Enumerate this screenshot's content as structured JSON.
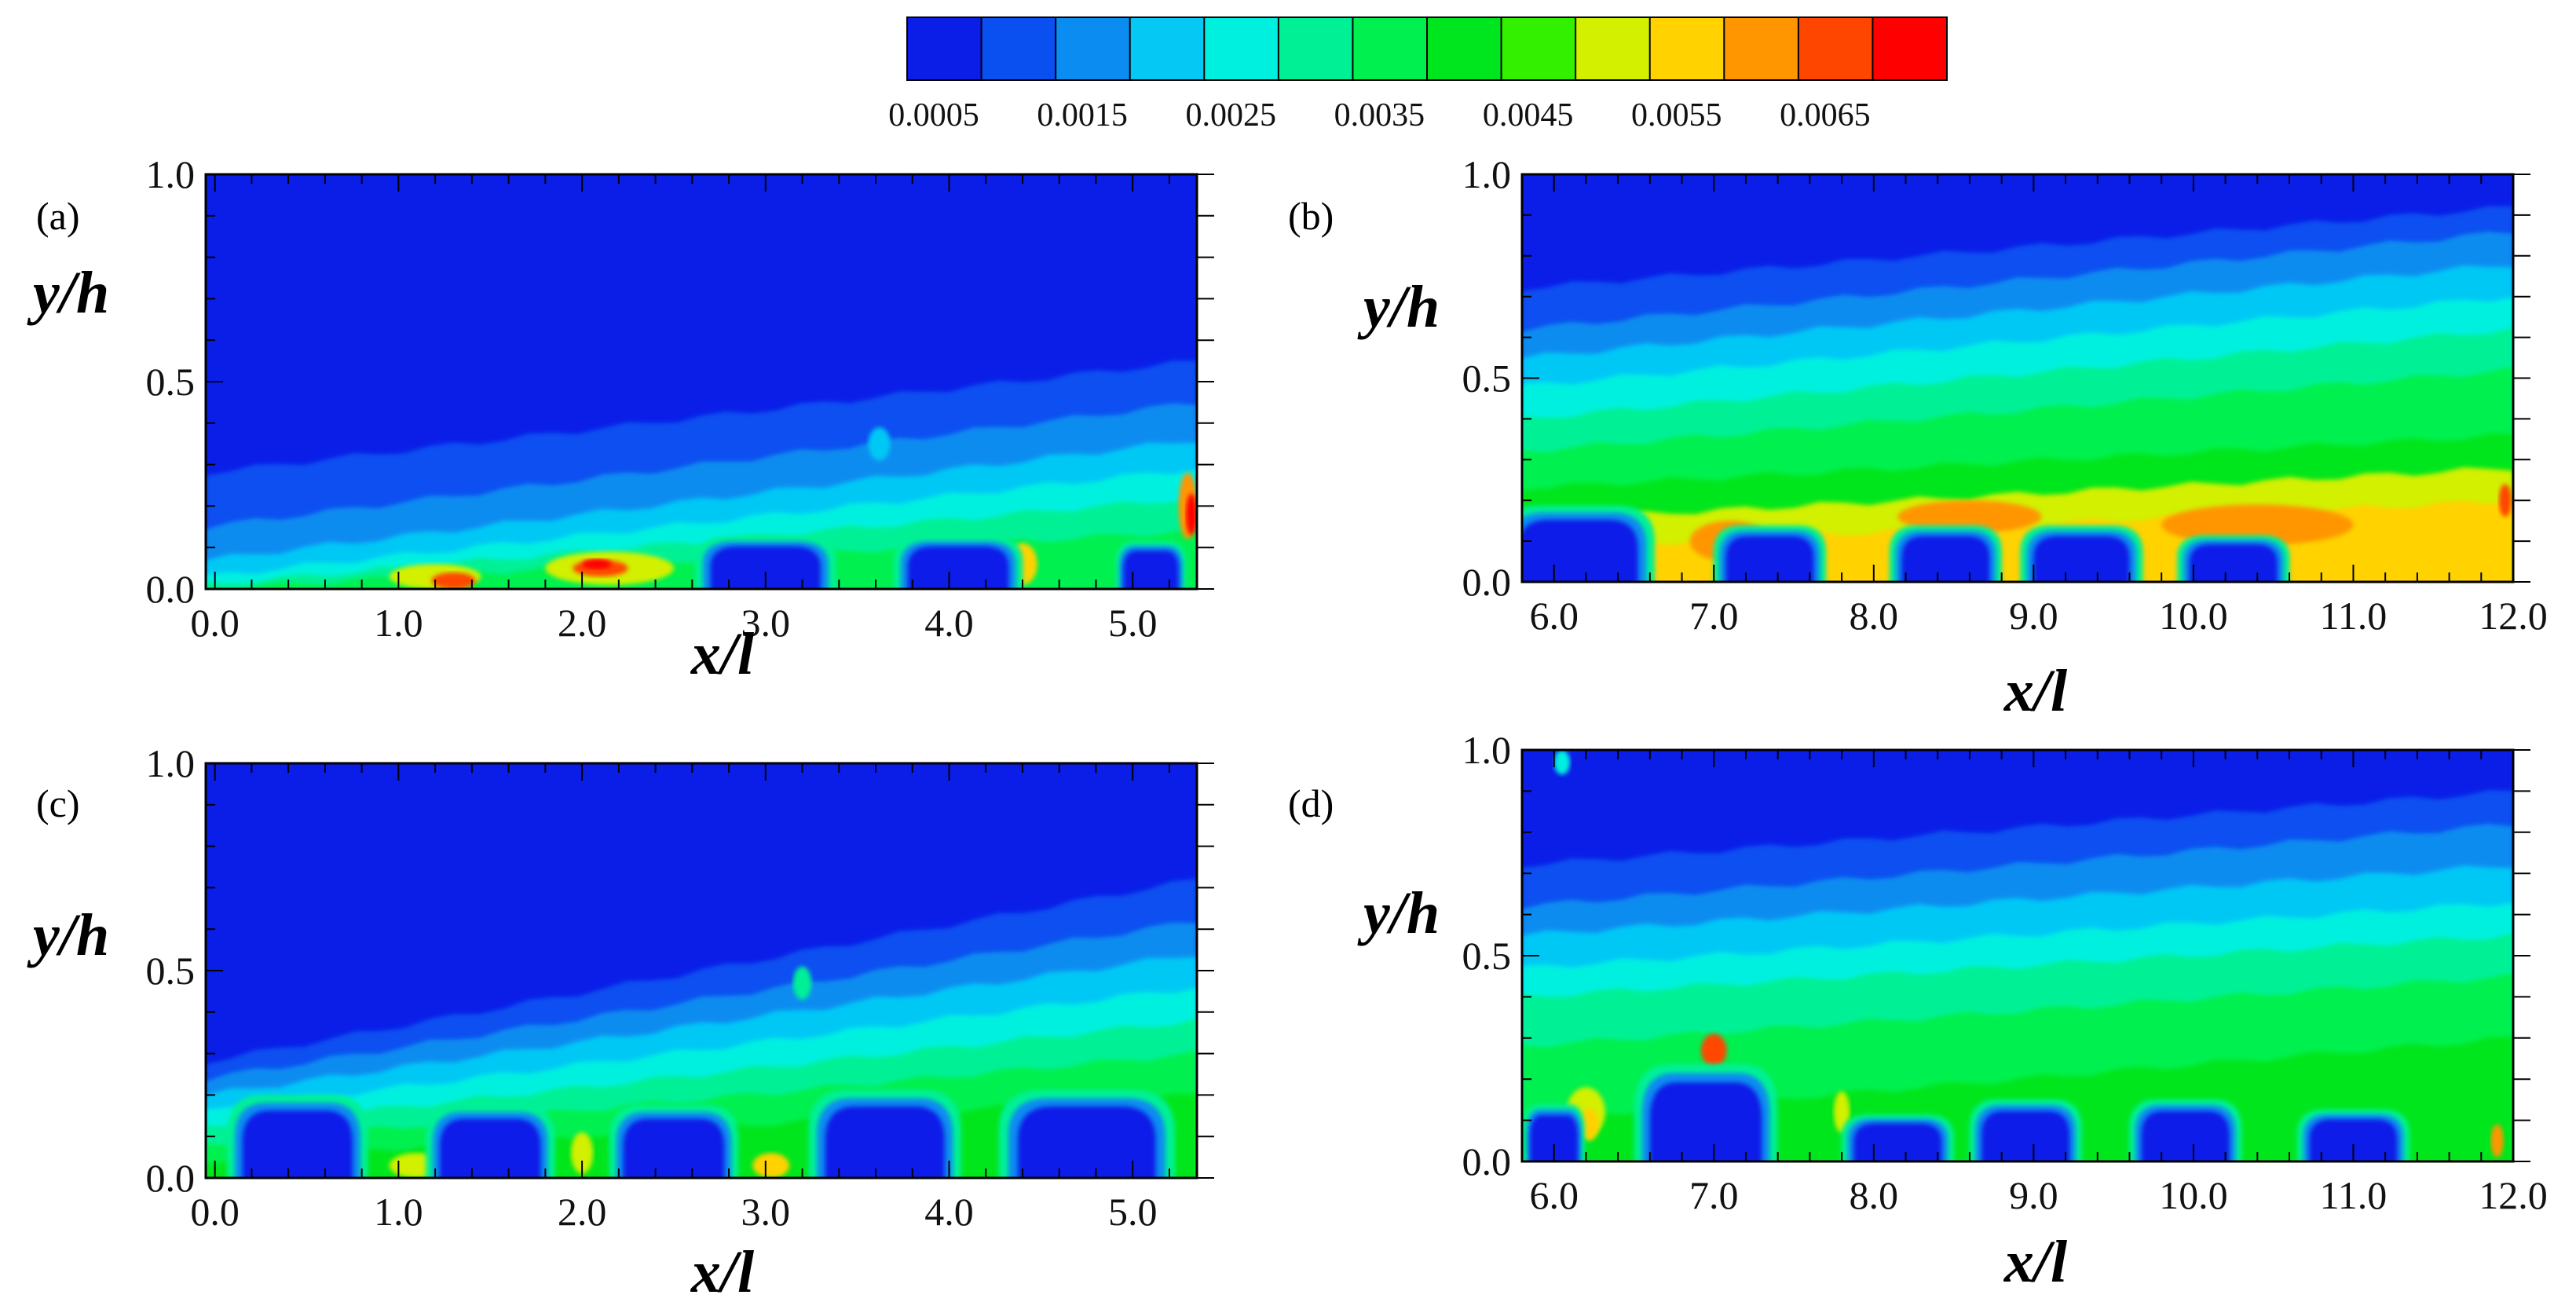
{
  "colorbar": {
    "levels": [
      "#0a1ee8",
      "#0a50f0",
      "#0a8cf0",
      "#06c8f5",
      "#00f0e0",
      "#00f096",
      "#00f050",
      "#00e61e",
      "#32f000",
      "#d2f000",
      "#ffd200",
      "#ff9600",
      "#ff4600",
      "#ff0000"
    ],
    "tick_labels": [
      "0.0005",
      "0.0015",
      "0.0025",
      "0.0035",
      "0.0045",
      "0.0055",
      "0.0065"
    ]
  },
  "chart_data": [
    {
      "panel": "(a)",
      "type": "heatmap",
      "title": "",
      "xlabel": "x/l",
      "ylabel": "y/h",
      "xlim": [
        -0.05,
        5.35
      ],
      "ylim": [
        0,
        1
      ],
      "xticks": [
        "0.0",
        "1.0",
        "2.0",
        "3.0",
        "4.0",
        "5.0"
      ],
      "xtick_values": [
        0,
        1,
        2,
        3,
        4,
        5
      ],
      "yticks": [
        "0.0",
        "0.5",
        "1.0"
      ],
      "ytick_values": [
        0,
        0.5,
        1
      ],
      "bands": [
        {
          "level": 1,
          "y0": 0.28,
          "y1": 0.55
        },
        {
          "level": 2,
          "y0": 0.15,
          "y1": 0.45
        },
        {
          "level": 3,
          "y0": 0.07,
          "y1": 0.36
        },
        {
          "level": 4,
          "y0": 0.03,
          "y1": 0.29
        },
        {
          "level": 5,
          "y0": 0.01,
          "y1": 0.22
        },
        {
          "level": 6,
          "y0": 0.0,
          "y1": 0.14
        }
      ],
      "blobs": [
        {
          "level": 9,
          "x": 1.2,
          "y": 0.03,
          "rx": 0.25,
          "ry": 0.03
        },
        {
          "level": 12,
          "x": 1.3,
          "y": 0.02,
          "rx": 0.12,
          "ry": 0.02
        },
        {
          "level": 9,
          "x": 2.15,
          "y": 0.05,
          "rx": 0.35,
          "ry": 0.04
        },
        {
          "level": 12,
          "x": 2.1,
          "y": 0.05,
          "rx": 0.15,
          "ry": 0.02
        },
        {
          "level": 13,
          "x": 2.08,
          "y": 0.06,
          "rx": 0.08,
          "ry": 0.012
        },
        {
          "level": 10,
          "x": 4.4,
          "y": 0.06,
          "rx": 0.08,
          "ry": 0.05
        },
        {
          "level": 11,
          "x": 5.3,
          "y": 0.2,
          "rx": 0.05,
          "ry": 0.08
        },
        {
          "level": 13,
          "x": 5.32,
          "y": 0.18,
          "rx": 0.03,
          "ry": 0.05
        },
        {
          "level": 3,
          "x": 3.62,
          "y": 0.35,
          "rx": 0.06,
          "ry": 0.04
        }
      ],
      "lobes": [
        {
          "level": 0,
          "x": 3.0,
          "w": 0.6,
          "h": 0.11
        },
        {
          "level": 0,
          "x": 4.05,
          "w": 0.55,
          "h": 0.11
        },
        {
          "level": 0,
          "x": 5.1,
          "w": 0.3,
          "h": 0.1
        }
      ]
    },
    {
      "panel": "(b)",
      "type": "heatmap",
      "title": "",
      "xlabel": "x/l",
      "ylabel": "y/h",
      "xlim": [
        5.8,
        12.0
      ],
      "ylim": [
        0,
        1
      ],
      "xticks": [
        "6.0",
        "7.0",
        "8.0",
        "9.0",
        "10.0",
        "11.0",
        "12.0"
      ],
      "xtick_values": [
        6,
        7,
        8,
        9,
        10,
        11,
        12
      ],
      "yticks": [
        "0.0",
        "0.5",
        "1.0"
      ],
      "ytick_values": [
        0,
        0.5,
        1
      ],
      "bands": [
        {
          "level": 1,
          "y0": 0.72,
          "y1": 0.92
        },
        {
          "level": 2,
          "y0": 0.62,
          "y1": 0.86
        },
        {
          "level": 3,
          "y0": 0.55,
          "y1": 0.78
        },
        {
          "level": 4,
          "y0": 0.48,
          "y1": 0.7
        },
        {
          "level": 5,
          "y0": 0.4,
          "y1": 0.62
        },
        {
          "level": 6,
          "y0": 0.32,
          "y1": 0.52
        },
        {
          "level": 7,
          "y0": 0.23,
          "y1": 0.36
        },
        {
          "level": 9,
          "y0": 0.15,
          "y1": 0.28
        },
        {
          "level": 10,
          "y0": 0.08,
          "y1": 0.2
        }
      ],
      "blobs": [
        {
          "level": 11,
          "x": 8.6,
          "y": 0.16,
          "rx": 0.45,
          "ry": 0.04
        },
        {
          "level": 11,
          "x": 10.4,
          "y": 0.14,
          "rx": 0.6,
          "ry": 0.05
        },
        {
          "level": 11,
          "x": 7.1,
          "y": 0.1,
          "rx": 0.25,
          "ry": 0.05
        },
        {
          "level": 12,
          "x": 11.95,
          "y": 0.2,
          "rx": 0.04,
          "ry": 0.04
        }
      ],
      "lobes": [
        {
          "level": 0,
          "x": 6.15,
          "w": 0.75,
          "h": 0.16
        },
        {
          "level": 0,
          "x": 7.35,
          "w": 0.55,
          "h": 0.12
        },
        {
          "level": 0,
          "x": 8.45,
          "w": 0.55,
          "h": 0.12
        },
        {
          "level": 0,
          "x": 9.3,
          "w": 0.6,
          "h": 0.12
        },
        {
          "level": 0,
          "x": 10.25,
          "w": 0.55,
          "h": 0.1
        }
      ]
    },
    {
      "panel": "(c)",
      "type": "heatmap",
      "title": "",
      "xlabel": "x/l",
      "ylabel": "y/h",
      "xlim": [
        -0.05,
        5.35
      ],
      "ylim": [
        0,
        1
      ],
      "xticks": [
        "0.0",
        "1.0",
        "2.0",
        "3.0",
        "4.0",
        "5.0"
      ],
      "xtick_values": [
        0,
        1,
        2,
        3,
        4,
        5
      ],
      "yticks": [
        "0.0",
        "0.5",
        "1.0"
      ],
      "ytick_values": [
        0,
        0.5,
        1
      ],
      "bands": [
        {
          "level": 1,
          "y0": 0.28,
          "y1": 0.72
        },
        {
          "level": 2,
          "y0": 0.24,
          "y1": 0.62
        },
        {
          "level": 3,
          "y0": 0.2,
          "y1": 0.54
        },
        {
          "level": 4,
          "y0": 0.16,
          "y1": 0.46
        },
        {
          "level": 5,
          "y0": 0.12,
          "y1": 0.38
        },
        {
          "level": 6,
          "y0": 0.08,
          "y1": 0.3
        },
        {
          "level": 7,
          "y0": 0.04,
          "y1": 0.2
        }
      ],
      "blobs": [
        {
          "level": 9,
          "x": 1.1,
          "y": 0.03,
          "rx": 0.15,
          "ry": 0.03
        },
        {
          "level": 9,
          "x": 2.0,
          "y": 0.06,
          "rx": 0.06,
          "ry": 0.05
        },
        {
          "level": 10,
          "x": 3.03,
          "y": 0.03,
          "rx": 0.1,
          "ry": 0.03
        },
        {
          "level": 9,
          "x": 5.1,
          "y": 0.06,
          "rx": 0.07,
          "ry": 0.03
        },
        {
          "level": 5,
          "x": 3.2,
          "y": 0.47,
          "rx": 0.05,
          "ry": 0.04
        }
      ],
      "lobes": [
        {
          "level": 0,
          "x": 0.45,
          "w": 0.6,
          "h": 0.17
        },
        {
          "level": 0,
          "x": 1.5,
          "w": 0.55,
          "h": 0.15
        },
        {
          "level": 0,
          "x": 2.5,
          "w": 0.55,
          "h": 0.15
        },
        {
          "level": 0,
          "x": 3.65,
          "w": 0.65,
          "h": 0.18
        },
        {
          "level": 0,
          "x": 4.75,
          "w": 0.75,
          "h": 0.18
        }
      ]
    },
    {
      "panel": "(d)",
      "type": "heatmap",
      "title": "",
      "xlabel": "x/l",
      "ylabel": "y/h",
      "xlim": [
        5.8,
        12.0
      ],
      "ylim": [
        0,
        1
      ],
      "xticks": [
        "6.0",
        "7.0",
        "8.0",
        "9.0",
        "10.0",
        "11.0",
        "12.0"
      ],
      "xtick_values": [
        6,
        7,
        8,
        9,
        10,
        11,
        12
      ],
      "yticks": [
        "0.0",
        "0.5",
        "1.0"
      ],
      "ytick_values": [
        0,
        0.5,
        1
      ],
      "bands": [
        {
          "level": 1,
          "y0": 0.72,
          "y1": 0.9
        },
        {
          "level": 2,
          "y0": 0.62,
          "y1": 0.82
        },
        {
          "level": 3,
          "y0": 0.55,
          "y1": 0.72
        },
        {
          "level": 4,
          "y0": 0.47,
          "y1": 0.63
        },
        {
          "level": 5,
          "y0": 0.4,
          "y1": 0.55
        },
        {
          "level": 6,
          "y0": 0.28,
          "y1": 0.45
        },
        {
          "level": 7,
          "y0": 0.1,
          "y1": 0.3
        }
      ],
      "blobs": [
        {
          "level": 12,
          "x": 7.0,
          "y": 0.27,
          "rx": 0.08,
          "ry": 0.04
        },
        {
          "level": 9,
          "x": 6.2,
          "y": 0.12,
          "rx": 0.12,
          "ry": 0.06
        },
        {
          "level": 10,
          "x": 6.22,
          "y": 0.09,
          "rx": 0.06,
          "ry": 0.04
        },
        {
          "level": 9,
          "x": 7.8,
          "y": 0.12,
          "rx": 0.05,
          "ry": 0.05
        },
        {
          "level": 11,
          "x": 11.9,
          "y": 0.05,
          "rx": 0.04,
          "ry": 0.04
        },
        {
          "level": 4,
          "x": 6.05,
          "y": 0.97,
          "rx": 0.05,
          "ry": 0.03
        }
      ],
      "lobes": [
        {
          "level": 0,
          "x": 6.0,
          "w": 0.3,
          "h": 0.12
        },
        {
          "level": 0,
          "x": 6.95,
          "w": 0.7,
          "h": 0.2
        },
        {
          "level": 0,
          "x": 8.15,
          "w": 0.55,
          "h": 0.1
        },
        {
          "level": 0,
          "x": 8.95,
          "w": 0.55,
          "h": 0.13
        },
        {
          "level": 0,
          "x": 9.95,
          "w": 0.55,
          "h": 0.13
        },
        {
          "level": 0,
          "x": 11.0,
          "w": 0.55,
          "h": 0.11
        }
      ]
    }
  ]
}
